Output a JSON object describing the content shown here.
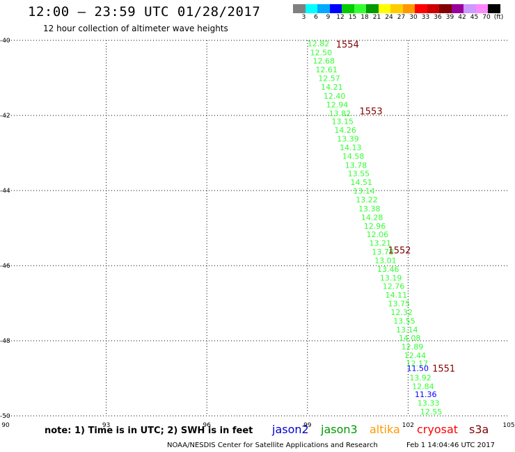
{
  "header": {
    "title": "12:00 – 23:59 UTC 01/28/2017",
    "subtitle": "12 hour collection of altimeter wave heights"
  },
  "legend": {
    "colors": [
      "#808080",
      "#00ffff",
      "#00aaff",
      "#0000ff",
      "#00cc00",
      "#33ff33",
      "#009900",
      "#ffff00",
      "#ffcc00",
      "#ff9900",
      "#ff0000",
      "#cc0000",
      "#800000",
      "#990099",
      "#cc99ff",
      "#ff88ff",
      "#000000"
    ],
    "labels": [
      "3",
      "6",
      "9",
      "12",
      "15",
      "18",
      "21",
      "24",
      "27",
      "30",
      "33",
      "36",
      "39",
      "42",
      "45",
      "70",
      "(ft)"
    ]
  },
  "map": {
    "lon_range": [
      90,
      105
    ],
    "lat_range": [
      -50,
      -40
    ],
    "lon_ticks": [
      {
        "value": 90,
        "label": "90"
      },
      {
        "value": 93,
        "label": "93"
      },
      {
        "value": 96,
        "label": "96"
      },
      {
        "value": 99,
        "label": "99"
      },
      {
        "value": 102,
        "label": "102"
      },
      {
        "value": 105,
        "label": "105"
      }
    ],
    "lat_ticks": [
      {
        "value": -40,
        "label": "-40"
      },
      {
        "value": -42,
        "label": "-42"
      },
      {
        "value": -44,
        "label": "-44"
      },
      {
        "value": -46,
        "label": "-46"
      },
      {
        "value": -48,
        "label": "-48"
      },
      {
        "value": -50,
        "label": "-50"
      }
    ],
    "grid": true,
    "colors": {
      "jason3_obs": "#33ff33",
      "jason2_obs": "#0000ff",
      "time_label": "#800000"
    },
    "observations": [
      {
        "lon": 99.0,
        "lat": -40.08,
        "v": "12.82",
        "sat": "jason3"
      },
      {
        "lon": 99.08,
        "lat": -40.32,
        "v": "12.50",
        "sat": "jason3"
      },
      {
        "lon": 99.16,
        "lat": -40.55,
        "v": "12.68",
        "sat": "jason3"
      },
      {
        "lon": 99.24,
        "lat": -40.78,
        "v": "12.61",
        "sat": "jason3"
      },
      {
        "lon": 99.32,
        "lat": -41.01,
        "v": "12.57",
        "sat": "jason3"
      },
      {
        "lon": 99.4,
        "lat": -41.24,
        "v": "14.21",
        "sat": "jason3"
      },
      {
        "lon": 99.48,
        "lat": -41.48,
        "v": "12.40",
        "sat": "jason3"
      },
      {
        "lon": 99.56,
        "lat": -41.71,
        "v": "12.94",
        "sat": "jason3"
      },
      {
        "lon": 99.64,
        "lat": -41.94,
        "v": "13.82",
        "sat": "jason3"
      },
      {
        "lon": 99.72,
        "lat": -42.16,
        "v": "13.15",
        "sat": "jason3"
      },
      {
        "lon": 99.8,
        "lat": -42.39,
        "v": "14.26",
        "sat": "jason3"
      },
      {
        "lon": 99.88,
        "lat": -42.62,
        "v": "13.39",
        "sat": "jason3"
      },
      {
        "lon": 99.96,
        "lat": -42.85,
        "v": "14.13",
        "sat": "jason3"
      },
      {
        "lon": 100.04,
        "lat": -43.08,
        "v": "14.58",
        "sat": "jason3"
      },
      {
        "lon": 100.12,
        "lat": -43.32,
        "v": "13.78",
        "sat": "jason3"
      },
      {
        "lon": 100.2,
        "lat": -43.55,
        "v": "13.55",
        "sat": "jason3"
      },
      {
        "lon": 100.28,
        "lat": -43.78,
        "v": "14.51",
        "sat": "jason3"
      },
      {
        "lon": 100.36,
        "lat": -44.01,
        "v": "13.14",
        "sat": "jason3"
      },
      {
        "lon": 100.44,
        "lat": -44.24,
        "v": "13.22",
        "sat": "jason3"
      },
      {
        "lon": 100.52,
        "lat": -44.48,
        "v": "13.38",
        "sat": "jason3"
      },
      {
        "lon": 100.6,
        "lat": -44.71,
        "v": "14.28",
        "sat": "jason3"
      },
      {
        "lon": 100.68,
        "lat": -44.94,
        "v": "12.96",
        "sat": "jason3"
      },
      {
        "lon": 100.76,
        "lat": -45.17,
        "v": "12.06",
        "sat": "jason3"
      },
      {
        "lon": 100.84,
        "lat": -45.4,
        "v": "13.21",
        "sat": "jason3"
      },
      {
        "lon": 100.92,
        "lat": -45.63,
        "v": "13.78",
        "sat": "jason3"
      },
      {
        "lon": 101.0,
        "lat": -45.86,
        "v": "13.01",
        "sat": "jason3"
      },
      {
        "lon": 101.08,
        "lat": -46.09,
        "v": "13.46",
        "sat": "jason3"
      },
      {
        "lon": 101.16,
        "lat": -46.32,
        "v": "13.19",
        "sat": "jason3"
      },
      {
        "lon": 101.24,
        "lat": -46.55,
        "v": "12.76",
        "sat": "jason3"
      },
      {
        "lon": 101.32,
        "lat": -46.78,
        "v": "14.11",
        "sat": "jason3"
      },
      {
        "lon": 101.4,
        "lat": -47.01,
        "v": "13.75",
        "sat": "jason3"
      },
      {
        "lon": 101.48,
        "lat": -47.24,
        "v": "12.32",
        "sat": "jason3"
      },
      {
        "lon": 101.56,
        "lat": -47.47,
        "v": "13.55",
        "sat": "jason3"
      },
      {
        "lon": 101.64,
        "lat": -47.7,
        "v": "13.14",
        "sat": "jason3"
      },
      {
        "lon": 101.72,
        "lat": -47.93,
        "v": "14.08",
        "sat": "jason3"
      },
      {
        "lon": 101.8,
        "lat": -48.16,
        "v": "12.89",
        "sat": "jason3"
      },
      {
        "lon": 101.88,
        "lat": -48.39,
        "v": "12.44",
        "sat": "jason3"
      },
      {
        "lon": 101.94,
        "lat": -48.6,
        "v": "12.17",
        "sat": "jason3"
      },
      {
        "lon": 101.96,
        "lat": -48.73,
        "v": "11.50",
        "sat": "jason2"
      },
      {
        "lon": 102.04,
        "lat": -48.98,
        "v": "13.92",
        "sat": "jason3"
      },
      {
        "lon": 102.12,
        "lat": -49.21,
        "v": "12.84",
        "sat": "jason3"
      },
      {
        "lon": 102.2,
        "lat": -49.43,
        "v": "11.36",
        "sat": "jason2"
      },
      {
        "lon": 102.28,
        "lat": -49.66,
        "v": "13.33",
        "sat": "jason3"
      },
      {
        "lon": 102.36,
        "lat": -49.89,
        "v": "12.55",
        "sat": "jason3"
      }
    ],
    "time_labels": [
      {
        "lon": 99.85,
        "lat": -40.1,
        "t": "1554"
      },
      {
        "lon": 100.55,
        "lat": -41.88,
        "t": "1553"
      },
      {
        "lon": 101.4,
        "lat": -45.58,
        "t": "1552"
      },
      {
        "lon": 102.72,
        "lat": -48.73,
        "t": "1551"
      }
    ]
  },
  "footer": {
    "note": "note:  1) Time is in UTC;  2) SWH is in feet",
    "satellites": [
      {
        "name": "jason2",
        "color": "#0000cc"
      },
      {
        "name": "jason3",
        "color": "#009900"
      },
      {
        "name": "altika",
        "color": "#ff9900"
      },
      {
        "name": "cryosat",
        "color": "#ff0000"
      },
      {
        "name": "s3a",
        "color": "#800000"
      }
    ],
    "credit": "NOAA/NESDIS Center for Satellite Applications and Research",
    "timestamp": "Feb  1 14:04:46 UTC 2017"
  }
}
